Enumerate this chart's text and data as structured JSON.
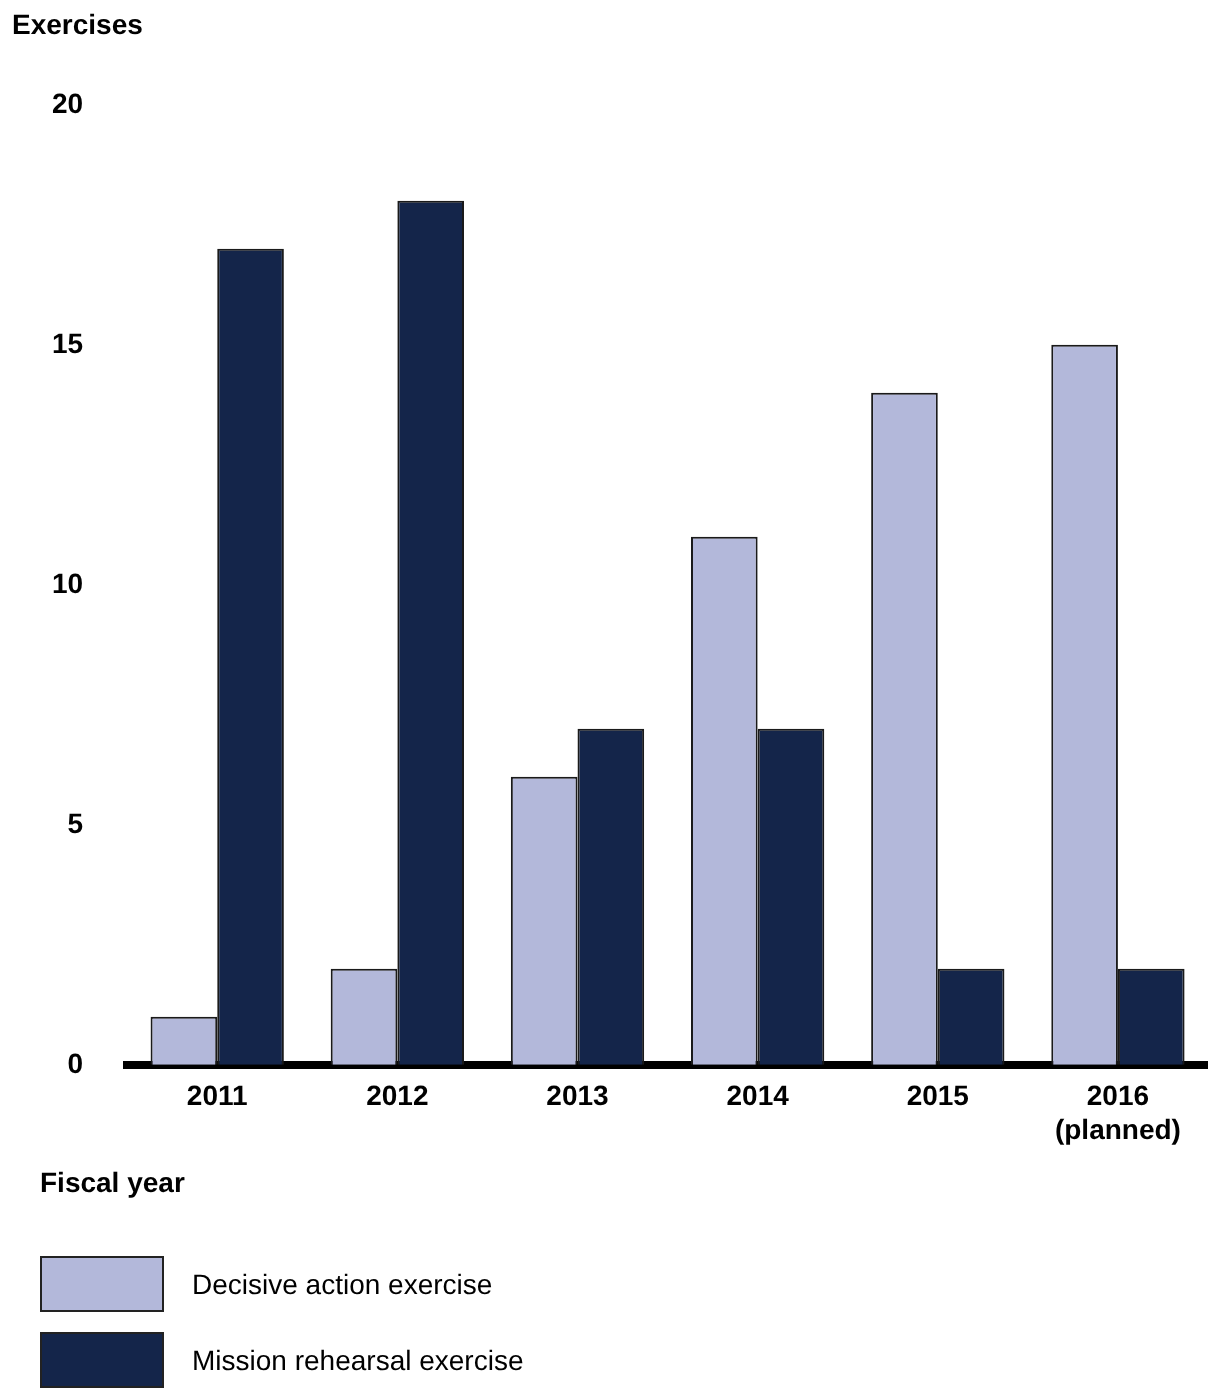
{
  "chart_data": {
    "type": "bar",
    "ylabel": "Exercises",
    "xlabel": "Fiscal year",
    "categories": [
      "2011",
      "2012",
      "2013",
      "2014",
      "2015",
      "2016 (planned)"
    ],
    "series": [
      {
        "name": "Decisive action exercise",
        "color": "#b3b8da",
        "values": [
          1,
          2,
          6,
          11,
          14,
          15
        ]
      },
      {
        "name": "Mission rehearsal exercise",
        "color": "#14254a",
        "values": [
          17,
          18,
          7,
          7,
          2,
          2
        ]
      }
    ],
    "ylim": [
      0,
      20
    ],
    "yticks": [
      0,
      5,
      10,
      15,
      20
    ],
    "grid": false,
    "legend": "bottom"
  }
}
